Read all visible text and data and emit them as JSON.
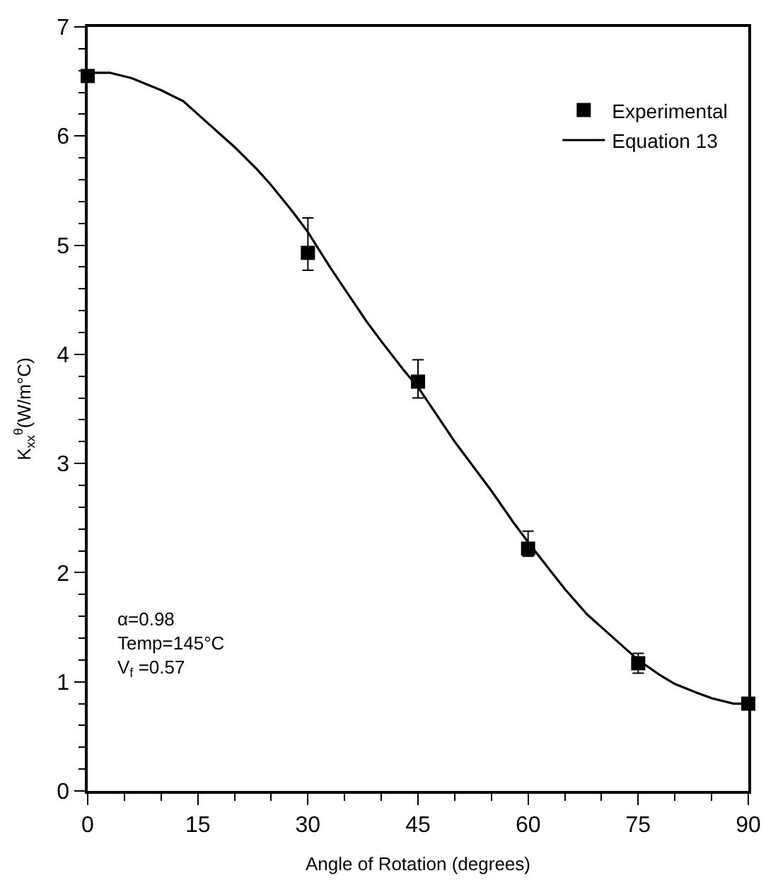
{
  "chart_data": {
    "type": "scatter",
    "xlabel": "Angle of Rotation (degrees)",
    "ylabel": "K$_{xx}$$^{θ}$(W/m°C)",
    "xlim": [
      0,
      90
    ],
    "xticks": [
      0,
      15,
      30,
      45,
      60,
      75,
      90
    ],
    "ylim": [
      0,
      7
    ],
    "yticks": [
      0,
      1,
      2,
      3,
      4,
      5,
      6,
      7
    ],
    "legend": "top right",
    "series": [
      {
        "name": "Experimental",
        "marker": "square",
        "color": "#000000",
        "x": [
          0,
          30,
          45,
          60,
          75,
          90
        ],
        "values": [
          6.55,
          4.93,
          3.75,
          2.22,
          1.17,
          0.8
        ],
        "errors": [
          null,
          [
            4.77,
            5.25
          ],
          [
            3.6,
            3.95
          ],
          [
            2.15,
            2.38
          ],
          [
            1.08,
            1.26
          ],
          null
        ]
      },
      {
        "name": "Equation 13",
        "type": "line",
        "line_style": "solid",
        "color": "#000000",
        "x": [
          0,
          3,
          6,
          10,
          13,
          15,
          18,
          20,
          23,
          25,
          28,
          30,
          33,
          35,
          38,
          40,
          43,
          45,
          48,
          50,
          53,
          55,
          58,
          60,
          63,
          65,
          68,
          70,
          73,
          75,
          78,
          80,
          83,
          85,
          88,
          90
        ],
        "values": [
          6.58,
          6.58,
          6.53,
          6.42,
          6.32,
          6.2,
          6.02,
          5.9,
          5.7,
          5.55,
          5.3,
          5.12,
          4.8,
          4.6,
          4.3,
          4.12,
          3.86,
          3.7,
          3.4,
          3.2,
          2.93,
          2.75,
          2.46,
          2.28,
          2.02,
          1.85,
          1.62,
          1.5,
          1.32,
          1.2,
          1.06,
          0.98,
          0.9,
          0.85,
          0.8,
          0.8
        ]
      }
    ],
    "annotations": [
      "α=0.98",
      "Temp=145°C",
      "V$_{f}$ =0.57"
    ]
  }
}
